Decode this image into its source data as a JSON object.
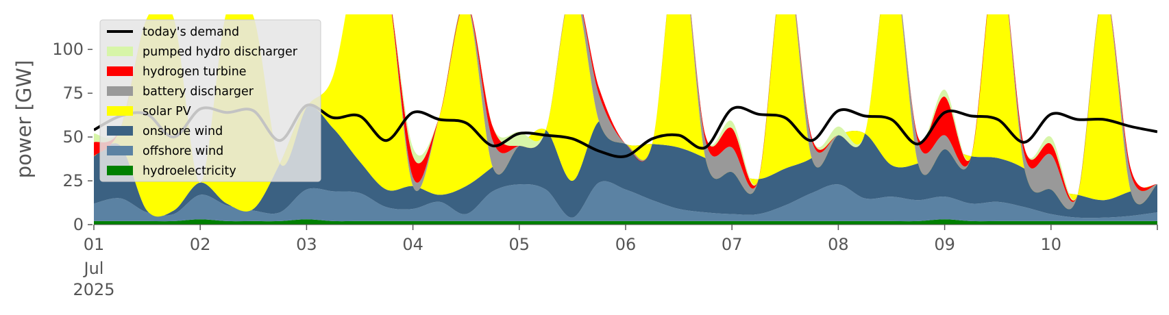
{
  "chart_data": {
    "type": "area",
    "title": "",
    "xlabel": "",
    "ylabel": "power [GW]",
    "ylim": [
      0,
      120
    ],
    "xlim": [
      0,
      10
    ],
    "grid": false,
    "legend_position": "top-left",
    "x_ticks": [
      {
        "day": 0,
        "label": "01"
      },
      {
        "day": 1,
        "label": "02"
      },
      {
        "day": 2,
        "label": "03"
      },
      {
        "day": 3,
        "label": "04"
      },
      {
        "day": 4,
        "label": "05"
      },
      {
        "day": 5,
        "label": "06"
      },
      {
        "day": 6,
        "label": "07"
      },
      {
        "day": 7,
        "label": "08"
      },
      {
        "day": 8,
        "label": "09"
      },
      {
        "day": 9,
        "label": "10"
      }
    ],
    "x_sublabels": [
      "Jul",
      "2025"
    ],
    "y_ticks": [
      0,
      25,
      50,
      75,
      100
    ],
    "legend": [
      {
        "label": "today's demand",
        "color": "#000000",
        "kind": "line"
      },
      {
        "label": "pumped hydro discharger",
        "color": "#d7f5a8",
        "kind": "patch"
      },
      {
        "label": "hydrogen turbine",
        "color": "#ff0000",
        "kind": "patch"
      },
      {
        "label": "battery discharger",
        "color": "#999999",
        "kind": "patch"
      },
      {
        "label": "solar PV",
        "color": "#ffff00",
        "kind": "patch"
      },
      {
        "label": "onshore wind",
        "color": "#3b6182",
        "kind": "patch"
      },
      {
        "label": "offshore wind",
        "color": "#5b82a3",
        "kind": "patch"
      },
      {
        "label": "hydroelectricity",
        "color": "#008000",
        "kind": "patch"
      }
    ],
    "x": [
      0,
      0.25,
      0.5,
      0.75,
      1,
      1.25,
      1.5,
      1.75,
      2,
      2.25,
      2.5,
      2.75,
      3,
      3.25,
      3.5,
      3.75,
      4,
      4.25,
      4.5,
      4.75,
      5,
      5.25,
      5.5,
      5.75,
      6,
      6.25,
      6.5,
      6.75,
      7,
      7.25,
      7.5,
      7.75,
      8,
      8.25,
      8.5,
      8.75,
      9,
      9.25,
      9.5,
      9.75,
      10
    ],
    "series": [
      {
        "name": "hydroelectricity",
        "color": "#008000",
        "values": [
          2,
          2,
          2,
          2,
          3,
          2,
          2,
          2,
          3,
          2,
          2,
          2,
          2,
          2,
          2,
          2,
          2,
          2,
          2,
          2,
          2,
          2,
          2,
          2,
          2,
          2,
          2,
          2,
          2,
          2,
          2,
          2,
          3,
          2,
          2,
          2,
          2,
          2,
          2,
          2,
          2
        ]
      },
      {
        "name": "offshore wind",
        "color": "#5b82a3",
        "values": [
          10,
          13,
          5,
          4,
          14,
          9,
          6,
          5,
          17,
          17,
          16,
          8,
          7,
          11,
          4,
          17,
          21,
          18,
          2,
          22,
          18,
          12,
          7,
          5,
          4,
          4,
          9,
          16,
          21,
          13,
          14,
          12,
          13,
          10,
          11,
          8,
          4,
          2,
          2,
          3,
          5
        ]
      },
      {
        "name": "onshore wind",
        "color": "#3b6182",
        "values": [
          27,
          30,
          1,
          2,
          7,
          1,
          1,
          28,
          47,
          36,
          18,
          10,
          13,
          4,
          16,
          14,
          22,
          34,
          21,
          35,
          26,
          32,
          35,
          31,
          24,
          20,
          21,
          20,
          28,
          37,
          18,
          21,
          27,
          27,
          25,
          22,
          14,
          13,
          10,
          14,
          16
        ]
      },
      {
        "name": "solar PV",
        "color": "#ffff00",
        "values": [
          0,
          10,
          110,
          110,
          0,
          110,
          110,
          0,
          0,
          30,
          120,
          120,
          0,
          45,
          105,
          0,
          0,
          0,
          110,
          0,
          0,
          0,
          120,
          0,
          0,
          0,
          120,
          0,
          0,
          0,
          120,
          0,
          0,
          0,
          120,
          0,
          0,
          0,
          120,
          0,
          0
        ]
      },
      {
        "name": "battery discharger",
        "color": "#999999",
        "values": [
          0,
          0,
          0,
          0,
          0,
          0,
          0,
          0,
          0,
          0,
          0,
          0,
          5,
          0,
          0,
          15,
          0,
          0,
          0,
          15,
          0,
          0,
          0,
          10,
          14,
          0,
          0,
          10,
          0,
          0,
          0,
          12,
          8,
          0,
          0,
          8,
          20,
          0,
          0,
          10,
          0
        ]
      },
      {
        "name": "hydrogen turbine",
        "color": "#ff0000",
        "values": [
          8,
          0,
          0,
          0,
          0,
          0,
          0,
          0,
          0,
          0,
          0,
          0,
          12,
          0,
          0,
          8,
          0,
          0,
          0,
          4,
          0,
          0,
          0,
          3,
          11,
          0,
          0,
          2,
          0,
          0,
          0,
          3,
          22,
          0,
          0,
          4,
          6,
          0,
          0,
          3,
          0
        ]
      },
      {
        "name": "pumped hydro discharger",
        "color": "#d7f5a8",
        "values": [
          5,
          0,
          0,
          0,
          0,
          0,
          0,
          0,
          0,
          0,
          0,
          0,
          5,
          0,
          0,
          0,
          8,
          0,
          0,
          0,
          0,
          0,
          0,
          0,
          4,
          0,
          0,
          0,
          5,
          0,
          0,
          0,
          4,
          0,
          0,
          0,
          4,
          0,
          0,
          0,
          0
        ]
      }
    ],
    "demand": {
      "name": "today's demand",
      "color": "#000000",
      "values": [
        54,
        62,
        63,
        50,
        66,
        64,
        65,
        48,
        68,
        61,
        62,
        48,
        64,
        60,
        58,
        45,
        52,
        51,
        49,
        42,
        39,
        49,
        51,
        44,
        66,
        63,
        61,
        48,
        65,
        62,
        60,
        46,
        64,
        62,
        60,
        47,
        63,
        60,
        60,
        56,
        53
      ]
    }
  }
}
